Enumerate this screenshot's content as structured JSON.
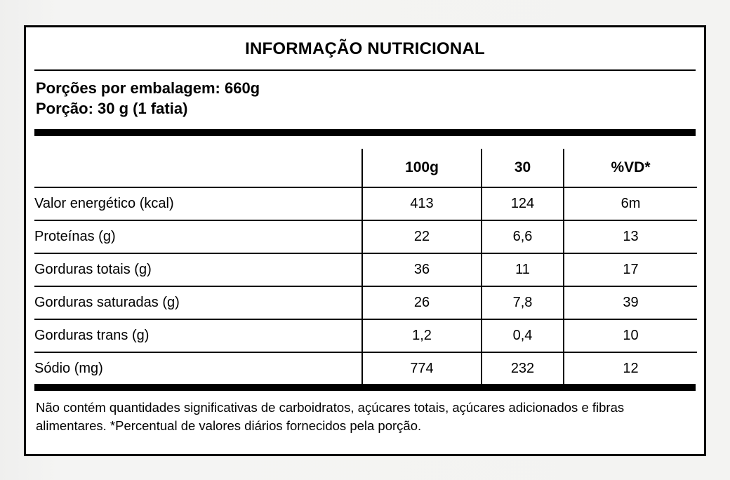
{
  "label": {
    "title": "INFORMAÇÃO NUTRICIONAL",
    "servings_per_package": "Porções por embalagem: 660g",
    "serving_size": "Porção: 30 g (1 fatia)",
    "footnote": "Não contém quantidades significativas de carboidratos, açúcares totais, açúcares adicionados e fibras alimentares. *Percentual de valores diários fornecidos pela porção."
  },
  "table": {
    "columns": [
      "",
      "100g",
      "30",
      "%VD*"
    ],
    "rows": [
      {
        "label": "Valor energético (kcal)",
        "g100": "413",
        "g30": "124",
        "vd": "6m"
      },
      {
        "label": "Proteínas (g)",
        "g100": "22",
        "g30": "6,6",
        "vd": "13"
      },
      {
        "label": "Gorduras totais (g)",
        "g100": "36",
        "g30": "11",
        "vd": "17"
      },
      {
        "label": "Gorduras saturadas (g)",
        "g100": "26",
        "g30": "7,8",
        "vd": "39"
      },
      {
        "label": "Gorduras trans (g)",
        "g100": "1,2",
        "g30": "0,4",
        "vd": "10"
      },
      {
        "label": "Sódio (mg)",
        "g100": "774",
        "g30": "232",
        "vd": "12"
      }
    ]
  },
  "colors": {
    "border": "#000000",
    "panel": "#ffffff",
    "page_background": "#f2f2f1"
  }
}
